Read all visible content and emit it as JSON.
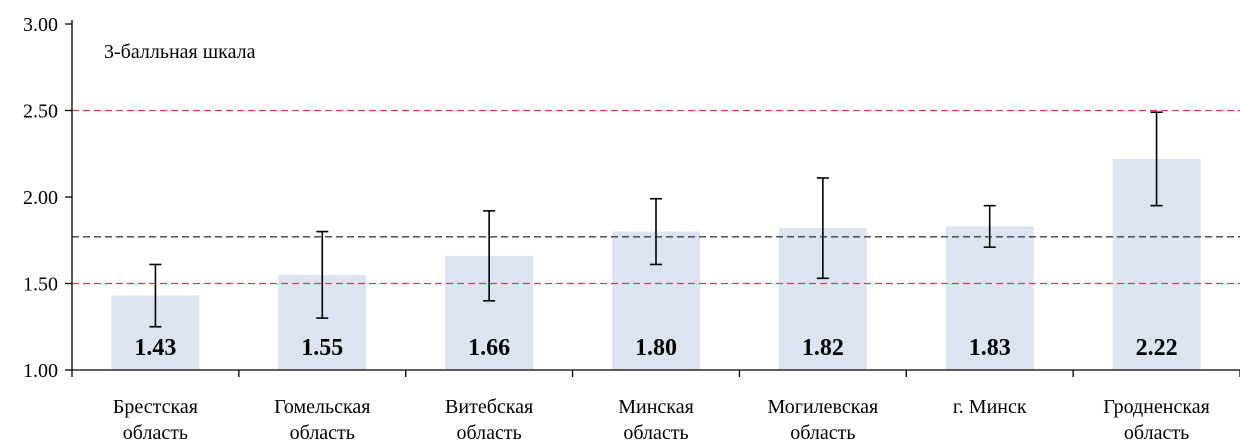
{
  "chart_data": {
    "type": "bar",
    "annotation": "3-балльная шкала",
    "categories": [
      [
        "Брестская",
        "область"
      ],
      [
        "Гомельская",
        "область"
      ],
      [
        "Витебская",
        "область"
      ],
      [
        "Минская",
        "область"
      ],
      [
        "Могилевская",
        "область"
      ],
      [
        "г. Минск"
      ],
      [
        "Гродненская",
        "область"
      ]
    ],
    "values": [
      1.43,
      1.55,
      1.66,
      1.8,
      1.82,
      1.83,
      2.22
    ],
    "value_labels": [
      "1.43",
      "1.55",
      "1.66",
      "1.80",
      "1.82",
      "1.83",
      "2.22"
    ],
    "error_low": [
      1.25,
      1.3,
      1.4,
      1.61,
      1.53,
      1.71,
      1.95
    ],
    "error_high": [
      1.61,
      1.8,
      1.92,
      1.99,
      2.11,
      1.95,
      2.49
    ],
    "ylim": [
      1.0,
      3.0
    ],
    "yticks": [
      1.0,
      1.5,
      2.0,
      2.5,
      3.0
    ],
    "ytick_labels": [
      "1.00",
      "1.50",
      "2.00",
      "2.50",
      "3.00"
    ],
    "reference_lines": [
      {
        "value": 1.5,
        "color": "#e8373f"
      },
      {
        "value": 2.5,
        "color": "#e8373f"
      },
      {
        "value": 1.77,
        "color": "#404040"
      }
    ],
    "bar_color": "#dbe4f0",
    "error_bar_color": "#000000",
    "grid": false,
    "xlabel": "",
    "ylabel": ""
  }
}
